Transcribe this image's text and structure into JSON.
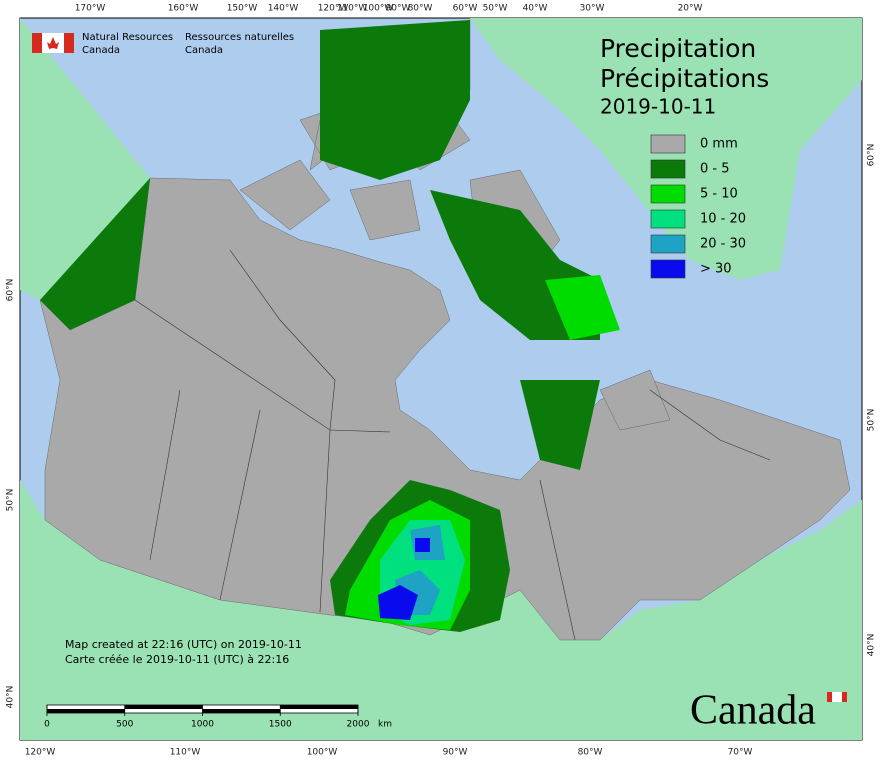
{
  "header": {
    "dept_en": [
      "Natural Resources",
      "Canada"
    ],
    "dept_fr": [
      "Ressources naturelles",
      "Canada"
    ]
  },
  "title": {
    "en": "Precipitation",
    "fr": "Précipitations",
    "date": "2019-10-11"
  },
  "legend": [
    {
      "label": "0 mm",
      "color": "#a9a9a9"
    },
    {
      "label": "0 - 5",
      "color": "#0b7a0b"
    },
    {
      "label": "5 - 10",
      "color": "#00dc00"
    },
    {
      "label": "10 - 20",
      "color": "#00e07e"
    },
    {
      "label": "20 - 30",
      "color": "#1fa3c4"
    },
    {
      "label": "> 30",
      "color": "#0a0aee"
    }
  ],
  "graticule": {
    "top": [
      "170°W",
      "160°W",
      "150°W",
      "140°W",
      "120°W",
      "110°W",
      "100°W",
      "90°W",
      "80°W",
      "60°W",
      "50°W",
      "40°W",
      "30°W",
      "20°W"
    ],
    "bottom": [
      "120°W",
      "110°W",
      "100°W",
      "90°W",
      "80°W",
      "70°W"
    ],
    "left": [
      "60°N",
      "50°N",
      "40°N"
    ],
    "right": [
      "60°N",
      "50°N",
      "40°N"
    ]
  },
  "notes": [
    "Map created at 22:16 (UTC) on 2019-10-11",
    "Carte créée le 2019-10-11 (UTC) à 22:16"
  ],
  "scale": {
    "ticks": [
      0,
      500,
      1000,
      1500,
      2000
    ],
    "unit": "km"
  },
  "wordmark": "Canada"
}
